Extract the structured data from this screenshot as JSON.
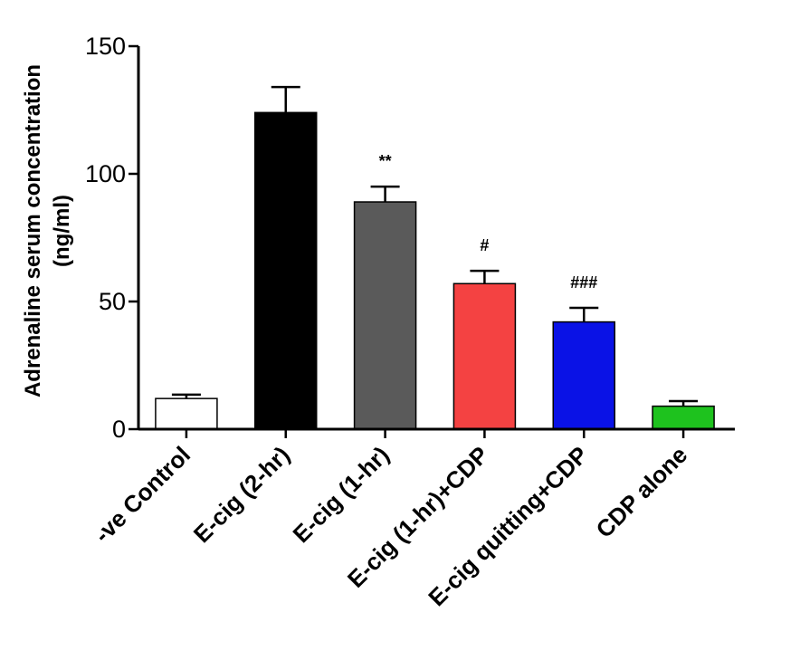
{
  "chart_data": {
    "type": "bar",
    "title": "",
    "ylabel_lines": [
      "Adrenaline serum concentration",
      "(ng/ml)"
    ],
    "xlabel": "",
    "ylim": [
      0,
      150
    ],
    "yticks": [
      0,
      50,
      100,
      150
    ],
    "categories": [
      "-ve Control",
      "E-cig (2-hr)",
      "E-cig (1-hr)",
      "E-cig (1-hr)+CDP",
      "E-cig quitting+CDP",
      "CDP alone"
    ],
    "values": [
      12,
      124,
      89,
      57,
      42,
      9
    ],
    "errors": [
      1.5,
      10,
      6,
      5,
      5.5,
      2
    ],
    "colors": [
      "#ffffff",
      "#000000",
      "#5a5a5a",
      "#f44242",
      "#0a12e6",
      "#1ec21e"
    ],
    "annotations": [
      "",
      "",
      "**",
      "#",
      "###",
      ""
    ],
    "grid": false
  }
}
